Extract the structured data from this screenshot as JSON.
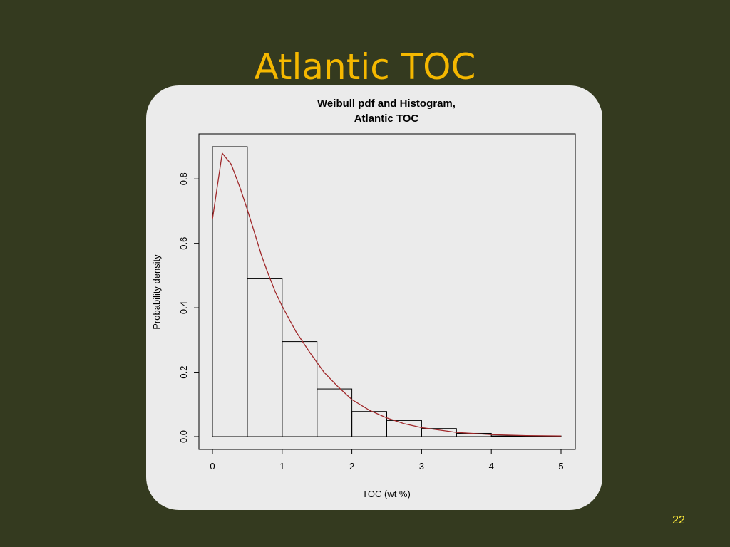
{
  "slide": {
    "title": "Atlantic TOC",
    "page_number": "22"
  },
  "colors": {
    "background": "#343a1f",
    "title": "#f5b800",
    "panel": "#ebebeb",
    "histogram": "#000000",
    "pdf_curve": "#a0282a",
    "page_number": "#ffeb3b"
  },
  "chart_data": {
    "type": "histogram",
    "title_line1": "Weibull pdf and Histogram,",
    "title_line2": "Atlantic TOC",
    "xlabel": "TOC (wt %)",
    "ylabel": "Probability density",
    "xlim": [
      0,
      5
    ],
    "ylim": [
      0,
      0.9
    ],
    "xticks": [
      0,
      1,
      2,
      3,
      4,
      5
    ],
    "yticks": [
      0.0,
      0.2,
      0.4,
      0.6,
      0.8
    ],
    "ytick_labels": [
      "0.0",
      "0.2",
      "0.4",
      "0.6",
      "0.8"
    ],
    "histogram": {
      "bin_edges": [
        0,
        0.5,
        1.0,
        1.5,
        2.0,
        2.5,
        3.0,
        3.5,
        4.0,
        4.5,
        5.0
      ],
      "densities": [
        0.9,
        0.49,
        0.295,
        0.148,
        0.078,
        0.05,
        0.025,
        0.01,
        0.002,
        0.002
      ]
    },
    "pdf_series": {
      "x": [
        0.0,
        0.14,
        0.27,
        0.4,
        0.5,
        0.6,
        0.7,
        0.8,
        0.9,
        1.0,
        1.2,
        1.4,
        1.6,
        1.8,
        2.0,
        2.25,
        2.5,
        2.75,
        3.0,
        3.5,
        4.0,
        4.5,
        5.0
      ],
      "y": [
        0.675,
        0.88,
        0.845,
        0.77,
        0.705,
        0.635,
        0.565,
        0.505,
        0.45,
        0.405,
        0.325,
        0.26,
        0.2,
        0.155,
        0.115,
        0.082,
        0.058,
        0.04,
        0.028,
        0.013,
        0.006,
        0.003,
        0.002
      ]
    },
    "grid": false,
    "legend": "none"
  }
}
